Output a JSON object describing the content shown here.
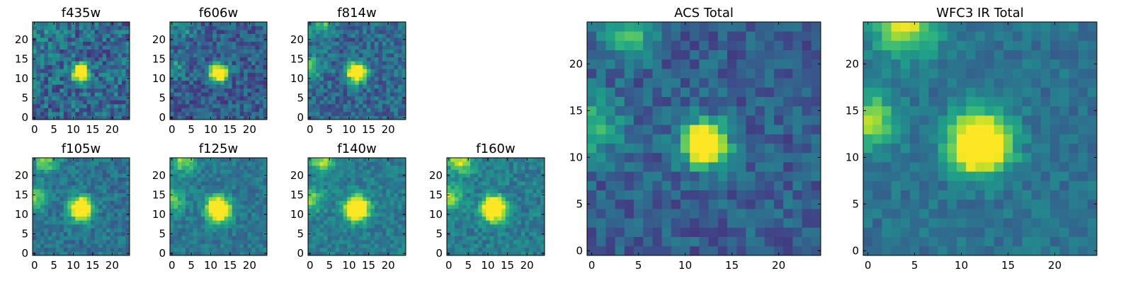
{
  "figure": {
    "background": "#ffffff"
  },
  "colormap": {
    "name": "viridis",
    "stops": [
      "#440154",
      "#482878",
      "#3e4989",
      "#31688e",
      "#26828e",
      "#1f9e89",
      "#35b779",
      "#6ece58",
      "#b5de2b",
      "#fde725"
    ]
  },
  "chart_data": [
    {
      "type": "heatmap",
      "title": "f435w",
      "xlim": [
        0,
        25
      ],
      "ylim": [
        0,
        25
      ],
      "xticks": [
        "0",
        "5",
        "10",
        "15",
        "20"
      ],
      "yticks": [
        "0",
        "5",
        "10",
        "15",
        "20"
      ],
      "source_center": [
        12,
        11.5
      ],
      "source_sigma": 1.4,
      "noise": 0.2,
      "bg_level": 0.34,
      "neighbors": [
        [
          2,
          24,
          0.15
        ],
        [
          0,
          14,
          0.12
        ]
      ],
      "seed": 11
    },
    {
      "type": "heatmap",
      "title": "f606w",
      "xlim": [
        0,
        25
      ],
      "ylim": [
        0,
        25
      ],
      "xticks": [
        "0",
        "5",
        "10",
        "15",
        "20"
      ],
      "yticks": [
        "0",
        "5",
        "10",
        "15",
        "20"
      ],
      "source_center": [
        12,
        11.5
      ],
      "source_sigma": 1.5,
      "noise": 0.16,
      "bg_level": 0.3,
      "neighbors": [
        [
          3,
          24,
          0.25
        ],
        [
          0,
          13,
          0.25
        ]
      ],
      "seed": 22
    },
    {
      "type": "heatmap",
      "title": "f814w",
      "xlim": [
        0,
        25
      ],
      "ylim": [
        0,
        25
      ],
      "xticks": [
        "0",
        "5",
        "10",
        "15",
        "20"
      ],
      "yticks": [
        "0",
        "5",
        "10",
        "15",
        "20"
      ],
      "source_center": [
        12,
        11.5
      ],
      "source_sigma": 1.6,
      "noise": 0.16,
      "bg_level": 0.34,
      "neighbors": [
        [
          3,
          24,
          0.35
        ],
        [
          0,
          13,
          0.35
        ]
      ],
      "seed": 33
    },
    {
      "type": "heatmap",
      "title": "f105w",
      "xlim": [
        0,
        25
      ],
      "ylim": [
        0,
        25
      ],
      "xticks": [
        "0",
        "5",
        "10",
        "15",
        "20"
      ],
      "yticks": [
        "0",
        "5",
        "10",
        "15",
        "20"
      ],
      "source_center": [
        12,
        11.5
      ],
      "source_sigma": 1.9,
      "noise": 0.12,
      "bg_level": 0.38,
      "neighbors": [
        [
          3,
          24,
          0.45
        ],
        [
          0,
          14,
          0.4
        ]
      ],
      "seed": 44
    },
    {
      "type": "heatmap",
      "title": "f125w",
      "xlim": [
        0,
        25
      ],
      "ylim": [
        0,
        25
      ],
      "xticks": [
        "0",
        "5",
        "10",
        "15",
        "20"
      ],
      "yticks": [
        "0",
        "5",
        "10",
        "15",
        "20"
      ],
      "source_center": [
        12,
        11.5
      ],
      "source_sigma": 2.0,
      "noise": 0.11,
      "bg_level": 0.4,
      "neighbors": [
        [
          3,
          24,
          0.45
        ],
        [
          0,
          14,
          0.4
        ]
      ],
      "seed": 55
    },
    {
      "type": "heatmap",
      "title": "f140w",
      "xlim": [
        0,
        25
      ],
      "ylim": [
        0,
        25
      ],
      "xticks": [
        "0",
        "5",
        "10",
        "15",
        "20"
      ],
      "yticks": [
        "0",
        "5",
        "10",
        "15",
        "20"
      ],
      "source_center": [
        12,
        11.5
      ],
      "source_sigma": 2.0,
      "noise": 0.11,
      "bg_level": 0.42,
      "neighbors": [
        [
          3,
          24,
          0.45
        ],
        [
          0,
          14,
          0.4
        ]
      ],
      "seed": 66
    },
    {
      "type": "heatmap",
      "title": "f160w",
      "xlim": [
        0,
        25
      ],
      "ylim": [
        0,
        25
      ],
      "xticks": [
        "0",
        "5",
        "10",
        "15",
        "20"
      ],
      "yticks": [
        "0",
        "5",
        "10",
        "15",
        "20"
      ],
      "source_center": [
        11.5,
        11.5
      ],
      "source_sigma": 2.0,
      "noise": 0.12,
      "bg_level": 0.42,
      "neighbors": [
        [
          3,
          24,
          0.55
        ],
        [
          0,
          14,
          0.45
        ]
      ],
      "seed": 77
    },
    {
      "type": "heatmap",
      "title": "ACS Total",
      "xlim": [
        0,
        25
      ],
      "ylim": [
        0,
        25
      ],
      "xticks": [
        "0",
        "5",
        "10",
        "15",
        "20"
      ],
      "yticks": [
        "0",
        "5",
        "10",
        "15",
        "20"
      ],
      "source_center": [
        12,
        11.5
      ],
      "source_sigma": 1.6,
      "noise": 0.13,
      "bg_level": 0.3,
      "neighbors": [
        [
          4,
          24,
          0.4
        ],
        [
          0,
          13.5,
          0.4
        ]
      ],
      "seed": 88
    },
    {
      "type": "heatmap",
      "title": "WFC3 IR Total",
      "xlim": [
        0,
        25
      ],
      "ylim": [
        0,
        25
      ],
      "xticks": [
        "0",
        "5",
        "10",
        "15",
        "20"
      ],
      "yticks": [
        "0",
        "5",
        "10",
        "15",
        "20"
      ],
      "source_center": [
        12,
        11.5
      ],
      "source_sigma": 2.1,
      "noise": 0.09,
      "bg_level": 0.38,
      "neighbors": [
        [
          4,
          24,
          0.55
        ],
        [
          0,
          14,
          0.45
        ]
      ],
      "seed": 99
    }
  ]
}
